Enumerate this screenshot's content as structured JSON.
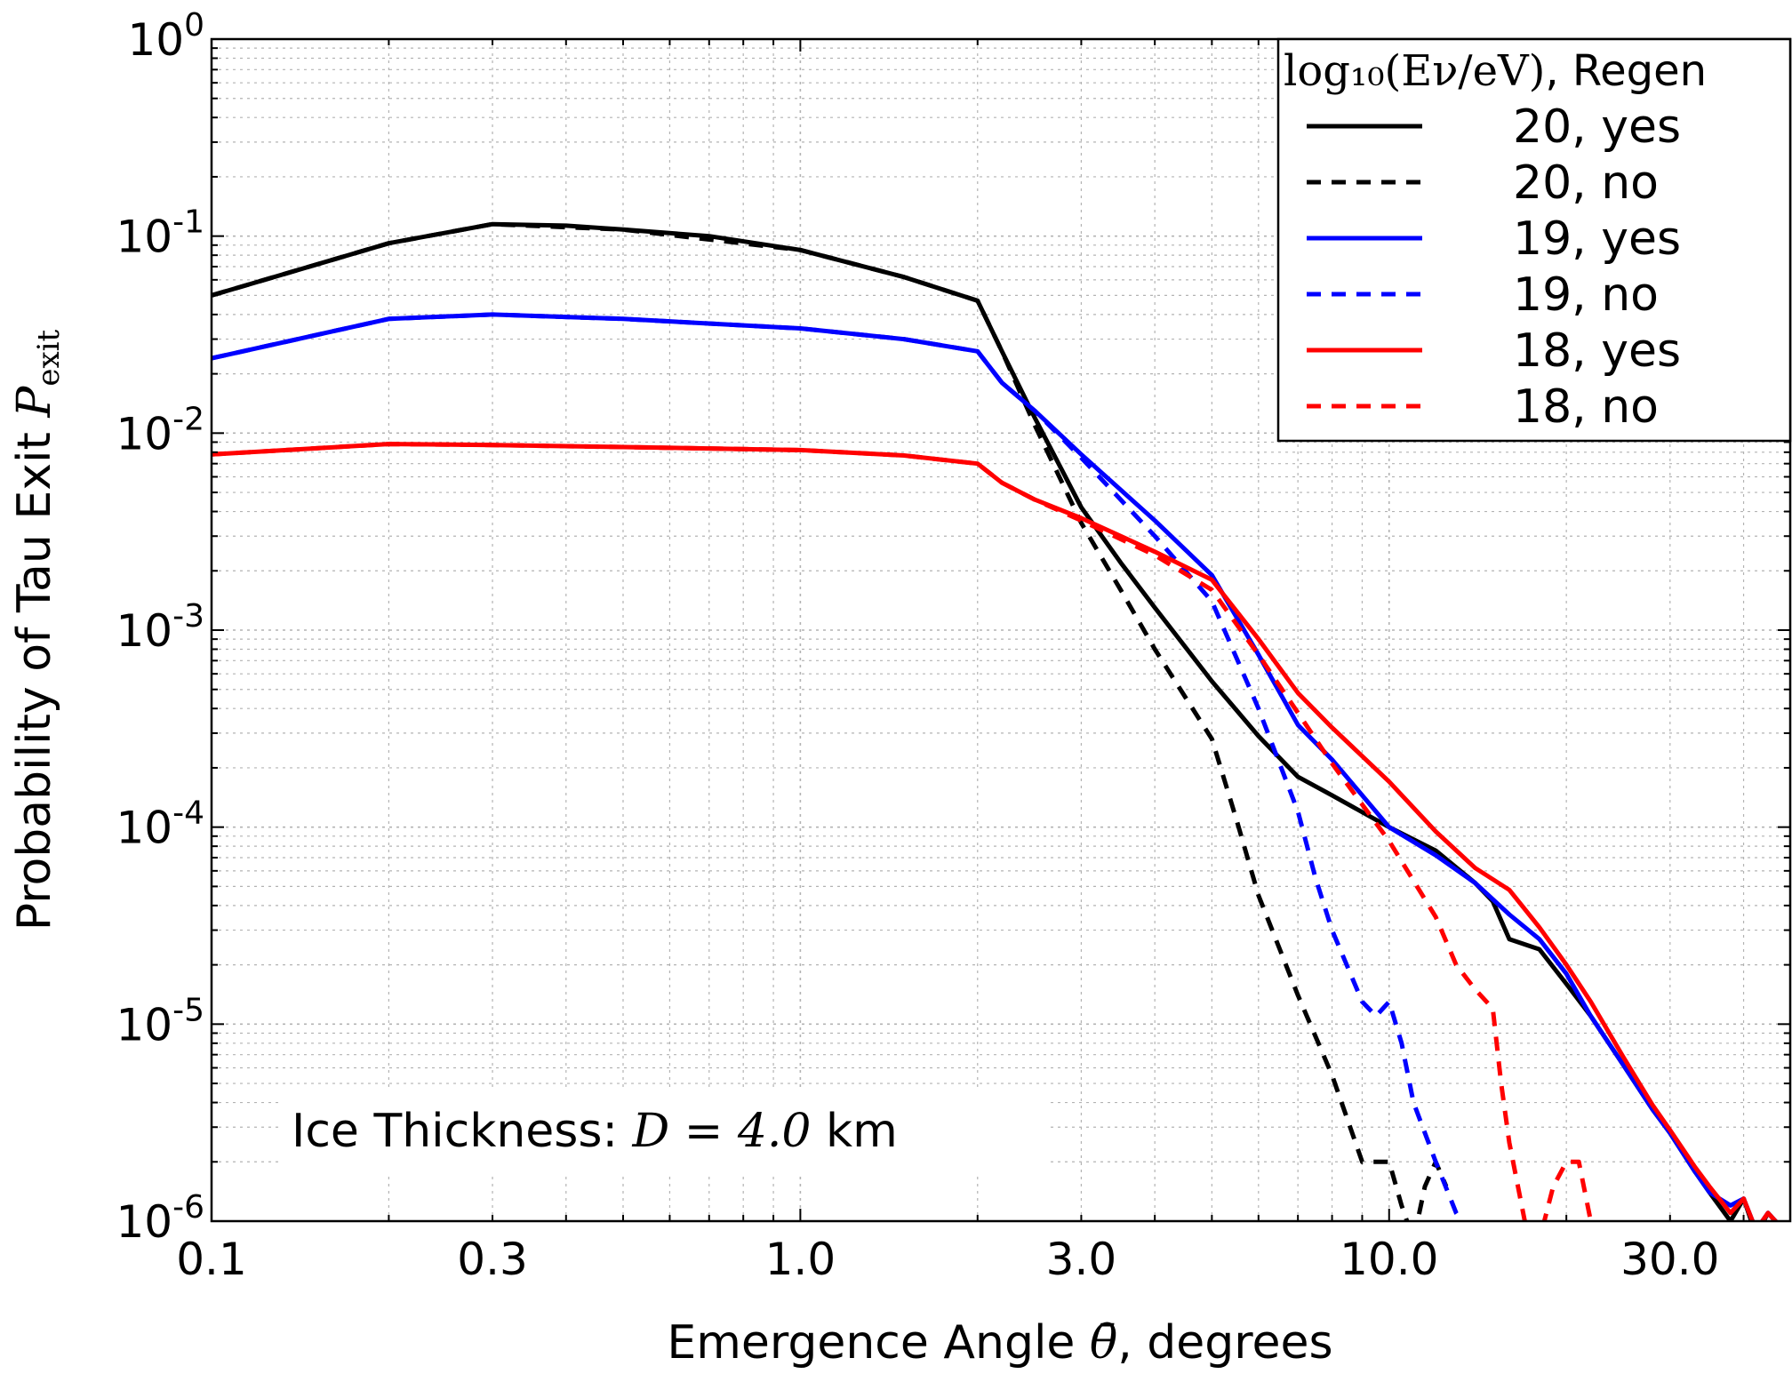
{
  "chart_data": {
    "type": "line",
    "xlabel_prefix": "Emergence Angle ",
    "xlabel_symbol": "θ̄",
    "xlabel_suffix": ", degrees",
    "ylabel_prefix": "Probability of Tau Exit ",
    "ylabel_symbol": "P",
    "ylabel_subscript": "exit",
    "x_scale": "log",
    "y_scale": "log",
    "xlim": [
      0.1,
      48
    ],
    "ylim": [
      1e-06,
      1
    ],
    "x_ticks": [
      0.1,
      0.3,
      1.0,
      3.0,
      10.0,
      30.0
    ],
    "x_tick_labels": [
      "0.1",
      "0.3",
      "1.0",
      "3.0",
      "10.0",
      "30.0"
    ],
    "y_ticks": [
      1e-06,
      1e-05,
      0.0001,
      0.001,
      0.01,
      0.1,
      1
    ],
    "y_tick_labels": [
      {
        "base": "10",
        "exp": "-6"
      },
      {
        "base": "10",
        "exp": "-5"
      },
      {
        "base": "10",
        "exp": "-4"
      },
      {
        "base": "10",
        "exp": "-3"
      },
      {
        "base": "10",
        "exp": "-2"
      },
      {
        "base": "10",
        "exp": "-1"
      },
      {
        "base": "10",
        "exp": "0"
      }
    ],
    "grid": true,
    "legend_placement": "top-right",
    "legend_title_math": "log₁₀(Eν/eV)",
    "legend_title_text": ", Regen",
    "annotation_prefix": "Ice Thickness: ",
    "annotation_math": "D = 4.0",
    "annotation_suffix": " km",
    "series": [
      {
        "name": "20, yes",
        "color": "#000000",
        "dashed": false,
        "x": [
          0.1,
          0.2,
          0.3,
          0.4,
          0.5,
          0.7,
          1.0,
          1.5,
          2.0,
          2.2,
          2.5,
          3.0,
          3.5,
          4.0,
          5.0,
          6.0,
          7.0,
          8.0,
          10.0,
          12.0,
          14.0,
          15.0,
          16.0,
          18.0,
          20.0,
          22.0,
          25.0,
          28.0,
          30.0,
          33.0,
          35.0,
          38.0,
          40.0,
          42.0,
          44.0,
          46.0,
          48.0
        ],
        "y": [
          0.05,
          0.092,
          0.115,
          0.113,
          0.108,
          0.1,
          0.085,
          0.062,
          0.047,
          0.026,
          0.012,
          0.0042,
          0.0022,
          0.0013,
          0.00055,
          0.00029,
          0.00018,
          0.000145,
          0.0001,
          7.6e-05,
          5.2e-05,
          4.2e-05,
          2.7e-05,
          2.4e-05,
          1.6e-05,
          1.1e-05,
          6.2e-06,
          3.7e-06,
          2.8e-06,
          1.8e-06,
          1.4e-06,
          1e-06,
          1.3e-06,
          8.5e-07,
          1.1e-06,
          9.5e-07,
          9e-07
        ]
      },
      {
        "name": "20, no",
        "color": "#000000",
        "dashed": true,
        "x": [
          0.1,
          0.2,
          0.3,
          0.5,
          1.0,
          1.5,
          2.0,
          2.2,
          2.5,
          3.0,
          3.5,
          4.0,
          5.0,
          5.5,
          6.0,
          7.0,
          8.0,
          9.0,
          10.0,
          10.5,
          11.0,
          11.5,
          12.0,
          12.5
        ],
        "y": [
          0.05,
          0.092,
          0.115,
          0.108,
          0.085,
          0.062,
          0.047,
          0.026,
          0.011,
          0.0035,
          0.0016,
          0.0008,
          0.00028,
          0.00011,
          4.5e-05,
          1.4e-05,
          5.5e-06,
          2e-06,
          2e-06,
          1.2e-06,
          8e-07,
          1.5e-06,
          2e-06,
          1.5e-06
        ]
      },
      {
        "name": "19, yes",
        "color": "#0000ff",
        "dashed": false,
        "x": [
          0.1,
          0.2,
          0.3,
          0.5,
          1.0,
          1.5,
          2.0,
          2.2,
          2.5,
          3.0,
          4.0,
          5.0,
          6.0,
          7.0,
          8.0,
          10.0,
          12.0,
          14.0,
          16.0,
          18.0,
          20.0,
          22.0,
          25.0,
          28.0,
          30.0,
          33.0,
          35.0,
          38.0,
          40.0,
          42.0,
          44.0,
          46.0,
          48.0
        ],
        "y": [
          0.024,
          0.038,
          0.04,
          0.038,
          0.034,
          0.03,
          0.026,
          0.018,
          0.013,
          0.0078,
          0.0036,
          0.0019,
          0.00075,
          0.00033,
          0.00022,
          0.0001,
          7.2e-05,
          5.2e-05,
          3.6e-05,
          2.7e-05,
          1.8e-05,
          1.1e-05,
          6.2e-06,
          3.7e-06,
          2.8e-06,
          1.8e-06,
          1.4e-06,
          1.2e-06,
          1.3e-06,
          9e-07,
          1.1e-06,
          9.5e-07,
          9e-07
        ]
      },
      {
        "name": "19, no",
        "color": "#0000ff",
        "dashed": true,
        "x": [
          0.1,
          0.2,
          0.3,
          0.5,
          1.0,
          1.5,
          2.0,
          2.2,
          2.5,
          3.0,
          4.0,
          5.0,
          6.0,
          7.0,
          7.5,
          8.0,
          9.0,
          9.5,
          10.0,
          10.5,
          11.0,
          12.0,
          13.0,
          14.0
        ],
        "y": [
          0.024,
          0.038,
          0.04,
          0.038,
          0.034,
          0.03,
          0.026,
          0.018,
          0.013,
          0.0075,
          0.003,
          0.0014,
          0.0004,
          0.00012,
          5.5e-05,
          3e-05,
          1.3e-05,
          1.1e-05,
          1.3e-05,
          8e-06,
          4e-06,
          2e-06,
          1.1e-06,
          8e-07
        ]
      },
      {
        "name": "18, yes",
        "color": "#ff0000",
        "dashed": false,
        "x": [
          0.1,
          0.2,
          0.3,
          0.5,
          1.0,
          1.5,
          2.0,
          2.2,
          2.5,
          3.0,
          4.0,
          5.0,
          6.0,
          7.0,
          8.0,
          10.0,
          12.0,
          14.0,
          16.0,
          18.0,
          20.0,
          22.0,
          25.0,
          28.0,
          30.0,
          33.0,
          35.0,
          38.0,
          40.0,
          42.0,
          44.0,
          46.0,
          48.0
        ],
        "y": [
          0.0078,
          0.0088,
          0.0087,
          0.0085,
          0.0082,
          0.0077,
          0.007,
          0.0056,
          0.0046,
          0.0037,
          0.0025,
          0.0018,
          0.0009,
          0.00048,
          0.00032,
          0.00017,
          9.5e-05,
          6.2e-05,
          4.8e-05,
          3.1e-05,
          2e-05,
          1.3e-05,
          6.8e-06,
          3.9e-06,
          2.9e-06,
          1.9e-06,
          1.5e-06,
          1.1e-06,
          1.3e-06,
          9e-07,
          1.1e-06,
          9.5e-07,
          9e-07
        ]
      },
      {
        "name": "18, no",
        "color": "#ff0000",
        "dashed": true,
        "x": [
          0.1,
          0.2,
          0.3,
          0.5,
          1.0,
          1.5,
          2.0,
          2.2,
          2.5,
          3.0,
          4.0,
          5.0,
          6.0,
          7.0,
          8.0,
          10.0,
          12.0,
          13.0,
          14.0,
          15.0,
          15.5,
          16.0,
          17.0,
          18.0,
          19.0,
          20.0,
          21.0,
          22.0,
          23.0
        ],
        "y": [
          0.0078,
          0.0088,
          0.0087,
          0.0085,
          0.0082,
          0.0077,
          0.007,
          0.0056,
          0.0046,
          0.0036,
          0.0024,
          0.0016,
          0.00075,
          0.00038,
          0.00021,
          8.5e-05,
          3.5e-05,
          2e-05,
          1.5e-05,
          1.2e-05,
          5e-06,
          2.5e-06,
          1e-06,
          8e-07,
          1.5e-06,
          2e-06,
          2e-06,
          1e-06,
          8e-07
        ]
      }
    ]
  }
}
